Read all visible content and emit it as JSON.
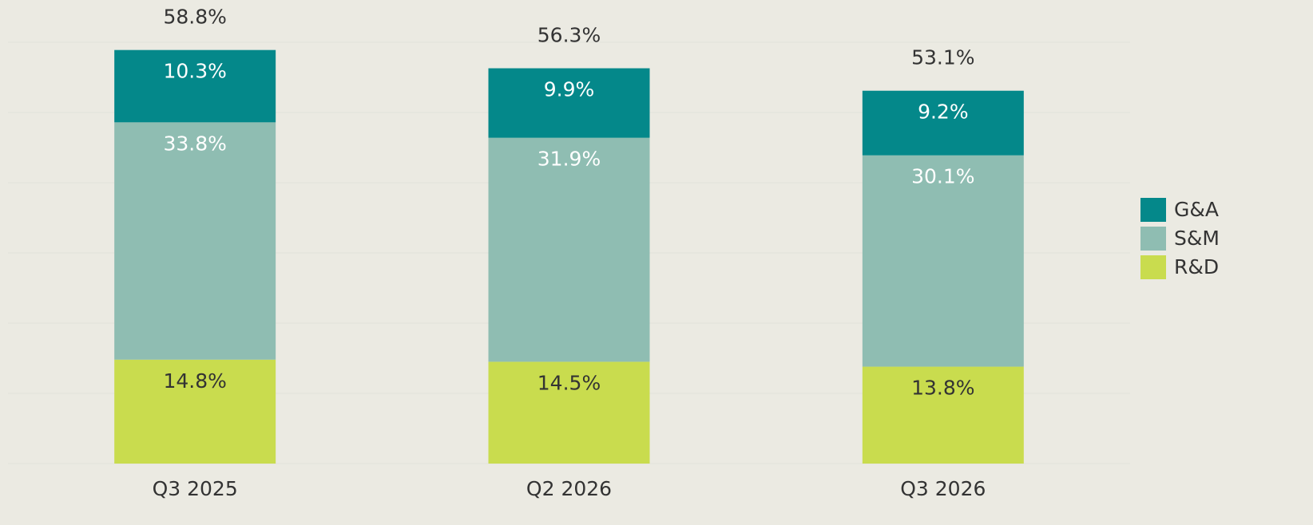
{
  "chart_data": {
    "type": "stacked_bar",
    "categories": [
      "Q3 2025",
      "Q2 2026",
      "Q3 2026"
    ],
    "series": [
      {
        "name": "R&D",
        "color": "#c9dc4e",
        "values": [
          14.8,
          14.5,
          13.8
        ],
        "value_labels": [
          "14.8%",
          "14.5%",
          "13.8%"
        ]
      },
      {
        "name": "S&M",
        "color": "#8fbdb2",
        "values": [
          33.8,
          31.9,
          30.1
        ],
        "value_labels": [
          "33.8%",
          "31.9%",
          "30.1%"
        ]
      },
      {
        "name": "G&A",
        "color": "#04888a",
        "values": [
          10.3,
          9.9,
          9.2
        ],
        "value_labels": [
          "10.3%",
          "9.9%",
          "9.2%"
        ]
      }
    ],
    "totals": [
      58.8,
      56.3,
      53.1
    ],
    "total_labels": [
      "58.8%",
      "56.3%",
      "53.1%"
    ],
    "ylim": [
      0,
      60
    ],
    "yticks": [
      0,
      10,
      20,
      30,
      40,
      50,
      60
    ],
    "grid": true,
    "legend": "right"
  }
}
